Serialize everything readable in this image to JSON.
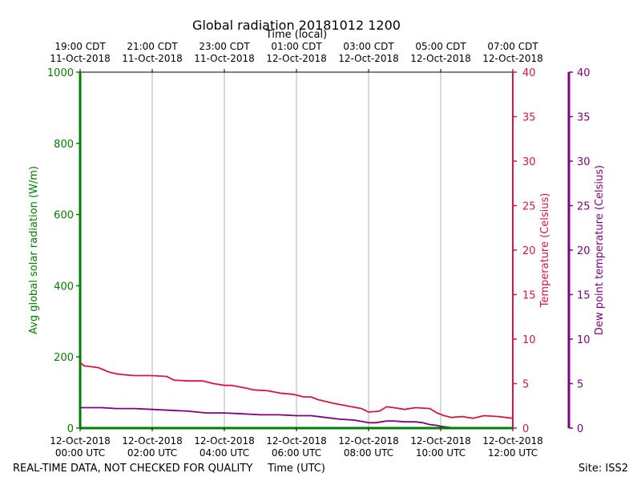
{
  "chart_data": {
    "type": "line",
    "title": "Global radiation 20181012 1200",
    "top_xlabel": "Time (local)",
    "xlabel": "Time (UTC)",
    "x_range_hours_utc": [
      0,
      12
    ],
    "bottom_ticks": [
      {
        "hour": 0,
        "date": "12-Oct-2018",
        "time": "00:00 UTC"
      },
      {
        "hour": 2,
        "date": "12-Oct-2018",
        "time": "02:00 UTC"
      },
      {
        "hour": 4,
        "date": "12-Oct-2018",
        "time": "04:00 UTC"
      },
      {
        "hour": 6,
        "date": "12-Oct-2018",
        "time": "06:00 UTC"
      },
      {
        "hour": 8,
        "date": "12-Oct-2018",
        "time": "08:00 UTC"
      },
      {
        "hour": 10,
        "date": "12-Oct-2018",
        "time": "10:00 UTC"
      },
      {
        "hour": 12,
        "date": "12-Oct-2018",
        "time": "12:00 UTC"
      }
    ],
    "top_ticks": [
      {
        "hour": 0,
        "time": "19:00 CDT",
        "date": "11-Oct-2018"
      },
      {
        "hour": 2,
        "time": "21:00 CDT",
        "date": "11-Oct-2018"
      },
      {
        "hour": 4,
        "time": "23:00 CDT",
        "date": "11-Oct-2018"
      },
      {
        "hour": 6,
        "time": "01:00 CDT",
        "date": "12-Oct-2018"
      },
      {
        "hour": 8,
        "time": "03:00 CDT",
        "date": "12-Oct-2018"
      },
      {
        "hour": 10,
        "time": "05:00 CDT",
        "date": "12-Oct-2018"
      },
      {
        "hour": 12,
        "time": "07:00 CDT",
        "date": "12-Oct-2018"
      }
    ],
    "axes": {
      "radiation": {
        "label": "Avg global solar radiation (W/m)",
        "range": [
          0,
          1000
        ],
        "ticks": [
          0,
          200,
          400,
          600,
          800,
          1000
        ],
        "color": "#008000"
      },
      "temperature": {
        "label": "Temperature (Celsius)",
        "range": [
          0,
          40
        ],
        "ticks": [
          0,
          5,
          10,
          15,
          20,
          25,
          30,
          35,
          40
        ],
        "color": "#dc143c"
      },
      "dewpoint": {
        "label": "Dew point temperature (Celsius)",
        "range": [
          0,
          40
        ],
        "ticks": [
          0,
          5,
          10,
          15,
          20,
          25,
          30,
          35,
          40
        ],
        "color": "#800080"
      }
    },
    "series": [
      {
        "name": "Avg global solar radiation",
        "axis": "radiation",
        "color": "#008000",
        "x": [
          0,
          2,
          4,
          6,
          8,
          10,
          12
        ],
        "values": [
          0,
          0,
          0,
          0,
          0,
          0,
          0
        ]
      },
      {
        "name": "Temperature",
        "axis": "temperature",
        "color": "#dc143c",
        "x": [
          0,
          0.1,
          0.3,
          0.5,
          0.8,
          1.0,
          1.2,
          1.5,
          1.8,
          2.0,
          2.4,
          2.6,
          3.0,
          3.4,
          3.7,
          4.0,
          4.2,
          4.6,
          4.8,
          5.2,
          5.6,
          5.9,
          6.2,
          6.4,
          6.6,
          7.0,
          7.4,
          7.8,
          8.0,
          8.3,
          8.5,
          8.7,
          9.0,
          9.3,
          9.7,
          9.9,
          10.1,
          10.3,
          10.6,
          10.9,
          11.2,
          11.6,
          11.8,
          12.0
        ],
        "values": [
          7.4,
          7.0,
          6.9,
          6.8,
          6.3,
          6.1,
          6.0,
          5.9,
          5.9,
          5.9,
          5.8,
          5.4,
          5.3,
          5.3,
          5.0,
          4.8,
          4.8,
          4.5,
          4.3,
          4.2,
          3.9,
          3.8,
          3.5,
          3.5,
          3.2,
          2.8,
          2.5,
          2.2,
          1.8,
          1.9,
          2.4,
          2.3,
          2.1,
          2.3,
          2.2,
          1.7,
          1.4,
          1.2,
          1.3,
          1.1,
          1.4,
          1.3,
          1.2,
          1.1
        ]
      },
      {
        "name": "Dew point temperature",
        "axis": "dewpoint",
        "color": "#800080",
        "x": [
          0,
          0.3,
          0.6,
          1.0,
          1.5,
          2.0,
          2.5,
          3.0,
          3.5,
          4.0,
          4.5,
          5.0,
          5.5,
          6.0,
          6.4,
          6.8,
          7.2,
          7.6,
          8.0,
          8.2,
          8.5,
          8.7,
          9.0,
          9.3,
          9.5,
          9.7,
          9.9,
          10.0,
          10.2,
          10.4
        ],
        "values": [
          2.3,
          2.3,
          2.3,
          2.2,
          2.2,
          2.1,
          2.0,
          1.9,
          1.7,
          1.7,
          1.6,
          1.5,
          1.5,
          1.4,
          1.4,
          1.2,
          1.0,
          0.9,
          0.6,
          0.6,
          0.8,
          0.8,
          0.7,
          0.7,
          0.6,
          0.4,
          0.3,
          0.2,
          0.1,
          0.0
        ]
      }
    ]
  },
  "footer": {
    "left": "REAL-TIME DATA, NOT CHECKED FOR QUALITY",
    "right": "Site: ISS2"
  }
}
